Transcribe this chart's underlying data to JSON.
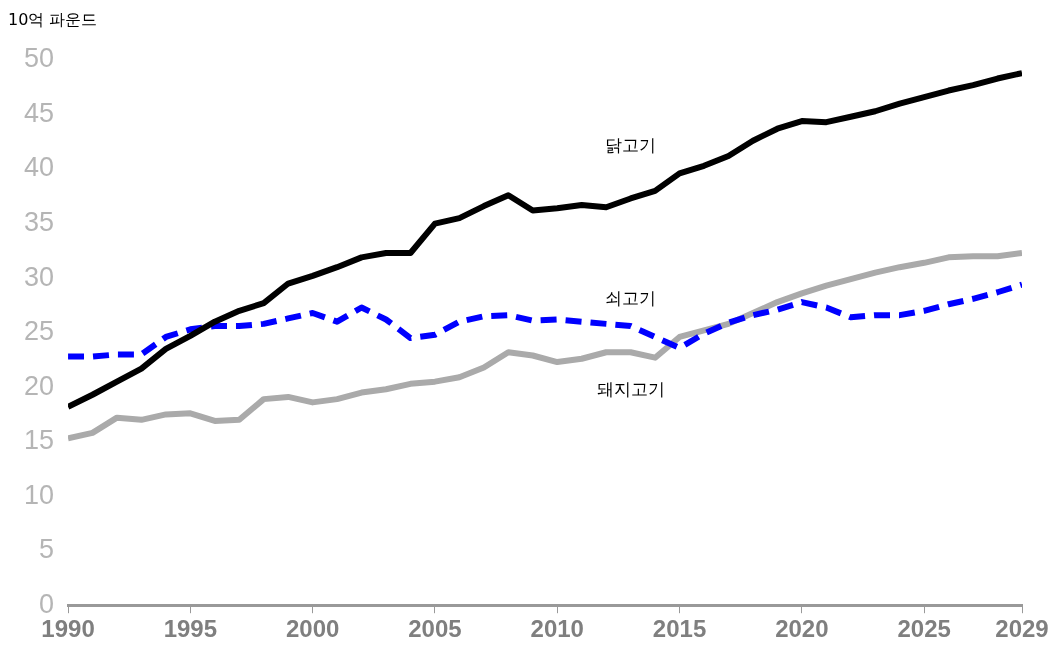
{
  "chart_data": {
    "type": "line",
    "ylabel": "10억 파운드",
    "x": [
      1990,
      1991,
      1992,
      1993,
      1994,
      1995,
      1996,
      1997,
      1998,
      1999,
      2000,
      2001,
      2002,
      2003,
      2004,
      2005,
      2006,
      2007,
      2008,
      2009,
      2010,
      2011,
      2012,
      2013,
      2014,
      2015,
      2016,
      2017,
      2018,
      2019,
      2020,
      2021,
      2022,
      2023,
      2024,
      2025,
      2026,
      2027,
      2028,
      2029
    ],
    "xlim": [
      1990,
      2029
    ],
    "xticks": [
      1990,
      1995,
      2000,
      2005,
      2010,
      2015,
      2020,
      2025,
      2029
    ],
    "ylim": [
      0,
      50
    ],
    "yticks": [
      0,
      5,
      10,
      15,
      20,
      25,
      30,
      35,
      40,
      45,
      50
    ],
    "grid": false,
    "legend": false,
    "marker": "none",
    "series": [
      {
        "name": "닭고기",
        "color": "#000000",
        "line_style": "solid",
        "values": [
          18.2,
          19.3,
          20.5,
          21.7,
          23.5,
          24.7,
          26,
          27,
          27.7,
          29.5,
          30.2,
          31,
          31.9,
          32.3,
          32.3,
          35,
          35.5,
          36.6,
          37.6,
          36.2,
          36.4,
          36.7,
          36.5,
          37.3,
          38,
          39.6,
          40.3,
          41.2,
          42.6,
          43.7,
          44.4,
          44.3,
          44.8,
          45.3,
          46,
          46.6,
          47.2,
          47.7,
          48.3,
          48.8
        ]
      },
      {
        "name": "쇠고기",
        "color": "#0000ff",
        "line_style": "dashed",
        "values": [
          22.8,
          22.8,
          23,
          23,
          24.6,
          25.3,
          25.6,
          25.6,
          25.8,
          26.3,
          26.8,
          26,
          27.3,
          26.2,
          24.5,
          24.8,
          26,
          26.5,
          26.6,
          26.1,
          26.2,
          26,
          25.8,
          25.6,
          24.6,
          23.6,
          24.9,
          25.9,
          26.6,
          27.1,
          27.8,
          27.3,
          26.4,
          26.6,
          26.6,
          27,
          27.6,
          28.1,
          28.7,
          29.4
        ]
      },
      {
        "name": "돼지고기",
        "color": "#aaaaaa",
        "line_style": "solid",
        "values": [
          15.3,
          15.8,
          17.2,
          17,
          17.5,
          17.6,
          16.9,
          17,
          18.9,
          19.1,
          18.6,
          18.9,
          19.5,
          19.8,
          20.3,
          20.5,
          20.9,
          21.8,
          23.2,
          22.9,
          22.3,
          22.6,
          23.2,
          23.2,
          22.7,
          24.6,
          25.2,
          25.8,
          26.8,
          27.8,
          28.6,
          29.3,
          29.9,
          30.5,
          31,
          31.4,
          31.9,
          32,
          32,
          32.3
        ]
      }
    ]
  }
}
